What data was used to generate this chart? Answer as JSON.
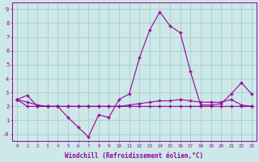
{
  "x": [
    0,
    1,
    2,
    3,
    4,
    5,
    6,
    7,
    8,
    9,
    10,
    11,
    12,
    13,
    14,
    15,
    16,
    17,
    18,
    19,
    20,
    21,
    22,
    23
  ],
  "line1": [
    2.5,
    2.8,
    2.0,
    2.0,
    2.0,
    1.2,
    0.5,
    -0.2,
    1.4,
    1.2,
    2.5,
    2.9,
    5.5,
    7.5,
    8.8,
    7.8,
    7.3,
    4.5,
    2.1,
    2.1,
    2.2,
    2.9,
    3.7,
    2.9
  ],
  "line2": [
    2.5,
    2.3,
    2.1,
    2.0,
    2.0,
    2.0,
    2.0,
    2.0,
    2.0,
    2.0,
    2.0,
    2.1,
    2.2,
    2.3,
    2.4,
    2.4,
    2.5,
    2.4,
    2.3,
    2.3,
    2.3,
    2.5,
    2.1,
    2.0
  ],
  "line3": [
    2.5,
    2.0,
    2.0,
    2.0,
    2.0,
    2.0,
    2.0,
    2.0,
    2.0,
    2.0,
    2.0,
    2.0,
    2.0,
    2.0,
    2.0,
    2.0,
    2.0,
    2.0,
    2.0,
    2.0,
    2.0,
    2.0,
    2.0,
    2.0
  ],
  "line_color": "#990099",
  "bg_color": "#cce8e8",
  "grid_color": "#aacccc",
  "xlabel": "Windchill (Refroidissement éolien,°C)",
  "ylim": [
    -0.5,
    9.5
  ],
  "xlim": [
    -0.5,
    23.5
  ],
  "yticks": [
    0,
    1,
    2,
    3,
    4,
    5,
    6,
    7,
    8,
    9
  ],
  "ytick_labels": [
    "-0",
    "1",
    "2",
    "3",
    "4",
    "5",
    "6",
    "7",
    "8",
    "9"
  ],
  "xticks": [
    0,
    1,
    2,
    3,
    4,
    5,
    6,
    7,
    8,
    9,
    10,
    11,
    12,
    13,
    14,
    15,
    16,
    17,
    18,
    19,
    20,
    21,
    22,
    23
  ]
}
